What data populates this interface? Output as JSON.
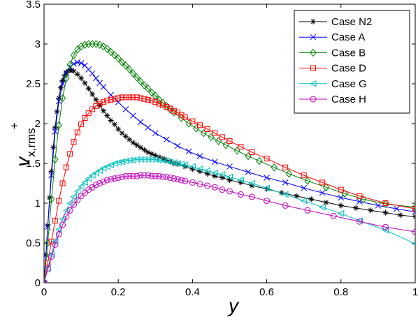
{
  "chart_data": {
    "type": "line",
    "title": "",
    "xlabel": "y",
    "ylabel": {
      "main": "v",
      "sub": "x,rms",
      "sup": "+"
    },
    "xlim": [
      0,
      1
    ],
    "ylim": [
      0,
      3.5
    ],
    "xticks": [
      0,
      0.2,
      0.4,
      0.6,
      0.8,
      1
    ],
    "xtick_labels": [
      "0",
      "0.2",
      "0.4",
      "0.6",
      "0.8",
      "1"
    ],
    "yticks": [
      0,
      0.5,
      1,
      1.5,
      2,
      2.5,
      3,
      3.5
    ],
    "ytick_labels": [
      "0",
      "0.5",
      "1",
      "1.5",
      "2",
      "2.5",
      "3",
      "3.5"
    ],
    "grid": false,
    "legend_position": "top-right",
    "series": [
      {
        "name": "Case N2",
        "color": "#000000",
        "marker": "star",
        "x": [
          0,
          0.005,
          0.01,
          0.015,
          0.02,
          0.025,
          0.03,
          0.035,
          0.04,
          0.045,
          0.05,
          0.055,
          0.06,
          0.065,
          0.07,
          0.075,
          0.08,
          0.09,
          0.1,
          0.11,
          0.12,
          0.13,
          0.14,
          0.15,
          0.16,
          0.17,
          0.18,
          0.19,
          0.2,
          0.21,
          0.22,
          0.23,
          0.24,
          0.25,
          0.26,
          0.27,
          0.28,
          0.29,
          0.3,
          0.31,
          0.32,
          0.33,
          0.34,
          0.35,
          0.36,
          0.38,
          0.4,
          0.42,
          0.44,
          0.46,
          0.48,
          0.5,
          0.53,
          0.56,
          0.6,
          0.64,
          0.68,
          0.72,
          0.76,
          0.8,
          0.84,
          0.88,
          0.92,
          0.96,
          1.0
        ],
        "y": [
          0,
          0.35,
          0.72,
          1.07,
          1.4,
          1.7,
          1.95,
          2.15,
          2.32,
          2.45,
          2.54,
          2.6,
          2.64,
          2.66,
          2.67,
          2.67,
          2.66,
          2.62,
          2.57,
          2.51,
          2.44,
          2.37,
          2.3,
          2.23,
          2.16,
          2.1,
          2.04,
          1.99,
          1.93,
          1.88,
          1.84,
          1.8,
          1.76,
          1.73,
          1.7,
          1.67,
          1.64,
          1.62,
          1.6,
          1.58,
          1.56,
          1.54,
          1.52,
          1.5,
          1.49,
          1.46,
          1.43,
          1.4,
          1.37,
          1.34,
          1.32,
          1.29,
          1.26,
          1.22,
          1.18,
          1.13,
          1.09,
          1.05,
          1.01,
          0.97,
          0.94,
          0.91,
          0.88,
          0.85,
          0.83
        ]
      },
      {
        "name": "Case A",
        "color": "#0000ff",
        "marker": "x",
        "x": [
          0,
          0.01,
          0.02,
          0.03,
          0.04,
          0.05,
          0.06,
          0.07,
          0.08,
          0.09,
          0.1,
          0.11,
          0.12,
          0.13,
          0.14,
          0.15,
          0.16,
          0.18,
          0.2,
          0.22,
          0.24,
          0.26,
          0.28,
          0.3,
          0.33,
          0.36,
          0.39,
          0.42,
          0.46,
          0.5,
          0.55,
          0.6,
          0.65,
          0.7,
          0.75,
          0.8,
          0.85,
          0.9,
          0.95,
          1.0
        ],
        "y": [
          0,
          0.7,
          1.35,
          1.9,
          2.28,
          2.5,
          2.63,
          2.71,
          2.75,
          2.77,
          2.76,
          2.73,
          2.68,
          2.63,
          2.57,
          2.51,
          2.46,
          2.36,
          2.27,
          2.18,
          2.1,
          2.02,
          1.95,
          1.88,
          1.8,
          1.72,
          1.65,
          1.59,
          1.52,
          1.46,
          1.39,
          1.32,
          1.26,
          1.19,
          1.13,
          1.07,
          1.02,
          0.97,
          0.93,
          0.89
        ]
      },
      {
        "name": "Case B",
        "color": "#008000",
        "marker": "diamond",
        "x": [
          0,
          0.01,
          0.02,
          0.03,
          0.04,
          0.05,
          0.06,
          0.07,
          0.08,
          0.09,
          0.1,
          0.11,
          0.12,
          0.13,
          0.14,
          0.15,
          0.16,
          0.17,
          0.18,
          0.19,
          0.2,
          0.21,
          0.22,
          0.23,
          0.24,
          0.25,
          0.26,
          0.27,
          0.28,
          0.29,
          0.3,
          0.31,
          0.32,
          0.33,
          0.34,
          0.35,
          0.37,
          0.39,
          0.41,
          0.43,
          0.45,
          0.47,
          0.49,
          0.52,
          0.55,
          0.58,
          0.62,
          0.66,
          0.71,
          0.76,
          0.81,
          0.86,
          0.92,
          1.0
        ],
        "y": [
          0,
          0.5,
          1.05,
          1.55,
          1.98,
          2.32,
          2.57,
          2.74,
          2.86,
          2.93,
          2.97,
          2.99,
          3.0,
          3.0,
          3.0,
          2.99,
          2.97,
          2.94,
          2.9,
          2.86,
          2.82,
          2.77,
          2.73,
          2.68,
          2.63,
          2.58,
          2.53,
          2.48,
          2.44,
          2.39,
          2.35,
          2.3,
          2.26,
          2.22,
          2.18,
          2.14,
          2.07,
          2.0,
          1.94,
          1.88,
          1.83,
          1.78,
          1.73,
          1.66,
          1.59,
          1.53,
          1.45,
          1.37,
          1.28,
          1.2,
          1.12,
          1.05,
          0.99,
          0.95
        ]
      },
      {
        "name": "Case D",
        "color": "#ff0000",
        "marker": "square",
        "x": [
          0,
          0.01,
          0.02,
          0.03,
          0.04,
          0.05,
          0.06,
          0.07,
          0.08,
          0.09,
          0.1,
          0.11,
          0.12,
          0.13,
          0.14,
          0.15,
          0.16,
          0.17,
          0.18,
          0.19,
          0.2,
          0.21,
          0.22,
          0.23,
          0.24,
          0.25,
          0.26,
          0.27,
          0.28,
          0.29,
          0.3,
          0.31,
          0.32,
          0.33,
          0.34,
          0.35,
          0.36,
          0.37,
          0.38,
          0.4,
          0.42,
          0.44,
          0.46,
          0.48,
          0.5,
          0.53,
          0.56,
          0.6,
          0.65,
          0.7,
          0.75,
          0.8,
          0.85,
          0.92,
          1.0
        ],
        "y": [
          0,
          0.25,
          0.52,
          0.78,
          1.03,
          1.25,
          1.45,
          1.62,
          1.77,
          1.89,
          1.99,
          2.07,
          2.13,
          2.18,
          2.22,
          2.25,
          2.27,
          2.29,
          2.3,
          2.31,
          2.32,
          2.33,
          2.33,
          2.33,
          2.33,
          2.33,
          2.32,
          2.31,
          2.3,
          2.29,
          2.27,
          2.25,
          2.23,
          2.21,
          2.19,
          2.16,
          2.14,
          2.11,
          2.08,
          2.03,
          1.98,
          1.93,
          1.88,
          1.83,
          1.78,
          1.71,
          1.64,
          1.56,
          1.45,
          1.35,
          1.26,
          1.17,
          1.09,
          1.0,
          0.93
        ]
      },
      {
        "name": "Case G",
        "color": "#00bfbf",
        "marker": "triangle-left",
        "x": [
          0,
          0.01,
          0.02,
          0.03,
          0.04,
          0.05,
          0.06,
          0.07,
          0.08,
          0.09,
          0.1,
          0.11,
          0.12,
          0.13,
          0.14,
          0.15,
          0.16,
          0.17,
          0.18,
          0.19,
          0.2,
          0.21,
          0.22,
          0.23,
          0.24,
          0.25,
          0.26,
          0.27,
          0.28,
          0.29,
          0.3,
          0.31,
          0.32,
          0.33,
          0.34,
          0.35,
          0.36,
          0.37,
          0.38,
          0.4,
          0.42,
          0.44,
          0.46,
          0.48,
          0.5,
          0.53,
          0.56,
          0.6,
          0.65,
          0.7,
          0.75,
          0.8,
          0.85,
          0.92,
          1.0
        ],
        "y": [
          0,
          0.18,
          0.36,
          0.52,
          0.67,
          0.8,
          0.91,
          1.0,
          1.08,
          1.15,
          1.21,
          1.26,
          1.31,
          1.35,
          1.38,
          1.41,
          1.44,
          1.46,
          1.48,
          1.5,
          1.51,
          1.52,
          1.53,
          1.54,
          1.54,
          1.55,
          1.55,
          1.55,
          1.55,
          1.55,
          1.55,
          1.54,
          1.54,
          1.53,
          1.52,
          1.51,
          1.5,
          1.49,
          1.48,
          1.46,
          1.43,
          1.41,
          1.38,
          1.36,
          1.33,
          1.29,
          1.25,
          1.19,
          1.11,
          1.03,
          0.95,
          0.87,
          0.78,
          0.66,
          0.49
        ]
      },
      {
        "name": "Case H",
        "color": "#bf00bf",
        "marker": "circle",
        "x": [
          0,
          0.01,
          0.02,
          0.03,
          0.04,
          0.05,
          0.06,
          0.07,
          0.08,
          0.09,
          0.1,
          0.11,
          0.12,
          0.13,
          0.14,
          0.15,
          0.16,
          0.17,
          0.18,
          0.19,
          0.2,
          0.21,
          0.22,
          0.23,
          0.24,
          0.25,
          0.26,
          0.27,
          0.28,
          0.29,
          0.3,
          0.31,
          0.32,
          0.33,
          0.34,
          0.35,
          0.36,
          0.37,
          0.38,
          0.4,
          0.42,
          0.44,
          0.46,
          0.48,
          0.5,
          0.53,
          0.56,
          0.6,
          0.65,
          0.71,
          0.78,
          0.85,
          0.92,
          1.0
        ],
        "y": [
          0,
          0.17,
          0.33,
          0.48,
          0.61,
          0.73,
          0.83,
          0.91,
          0.98,
          1.04,
          1.09,
          1.13,
          1.17,
          1.2,
          1.23,
          1.25,
          1.27,
          1.29,
          1.3,
          1.31,
          1.32,
          1.33,
          1.34,
          1.34,
          1.34,
          1.34,
          1.35,
          1.35,
          1.35,
          1.34,
          1.34,
          1.34,
          1.33,
          1.33,
          1.32,
          1.31,
          1.3,
          1.29,
          1.28,
          1.26,
          1.24,
          1.22,
          1.2,
          1.17,
          1.15,
          1.11,
          1.08,
          1.03,
          0.97,
          0.91,
          0.84,
          0.77,
          0.7,
          0.64
        ]
      }
    ]
  }
}
